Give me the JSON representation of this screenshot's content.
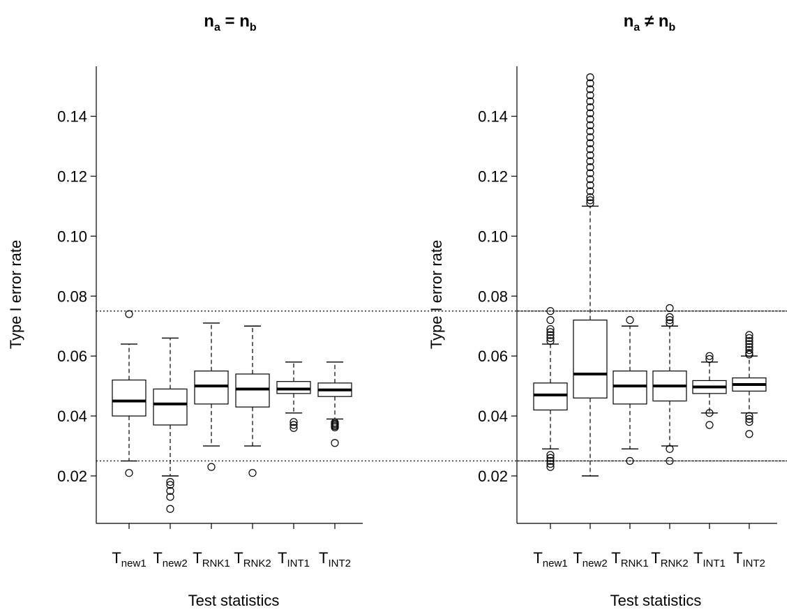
{
  "chart_data": [
    {
      "type": "box",
      "title": {
        "base": "n",
        "sub1": "a",
        "op": "=",
        "sub2": "b"
      },
      "xlabel": "Test statistics",
      "ylabel": "Type I error rate",
      "ylim": [
        0.005,
        0.158
      ],
      "yticks": [
        "0.02",
        "0.04",
        "0.06",
        "0.08",
        "0.10",
        "0.12",
        "0.14"
      ],
      "reference_lines": [
        0.025,
        0.075
      ],
      "categories": [
        {
          "base": "T",
          "sub": "new1"
        },
        {
          "base": "T",
          "sub": "new2"
        },
        {
          "base": "T",
          "sub": "RNK1"
        },
        {
          "base": "T",
          "sub": "RNK2"
        },
        {
          "base": "T",
          "sub": "INT1"
        },
        {
          "base": "T",
          "sub": "INT2"
        }
      ],
      "boxes": [
        {
          "whisker_low": 0.025,
          "q1": 0.04,
          "median": 0.045,
          "q3": 0.052,
          "whisker_high": 0.064,
          "outliers": [
            0.021,
            0.074
          ]
        },
        {
          "whisker_low": 0.02,
          "q1": 0.037,
          "median": 0.044,
          "q3": 0.049,
          "whisker_high": 0.066,
          "outliers": [
            0.009,
            0.013,
            0.015,
            0.017,
            0.018
          ]
        },
        {
          "whisker_low": 0.03,
          "q1": 0.044,
          "median": 0.05,
          "q3": 0.055,
          "whisker_high": 0.071,
          "outliers": [
            0.023
          ]
        },
        {
          "whisker_low": 0.03,
          "q1": 0.043,
          "median": 0.049,
          "q3": 0.054,
          "whisker_high": 0.07,
          "outliers": [
            0.021
          ]
        },
        {
          "whisker_low": 0.041,
          "q1": 0.0475,
          "median": 0.049,
          "q3": 0.0515,
          "whisker_high": 0.058,
          "outliers": [
            0.036,
            0.037,
            0.038
          ]
        },
        {
          "whisker_low": 0.039,
          "q1": 0.0465,
          "median": 0.0487,
          "q3": 0.051,
          "whisker_high": 0.058,
          "outliers": [
            0.031,
            0.0362,
            0.0366,
            0.037,
            0.0374,
            0.0378
          ]
        }
      ]
    },
    {
      "type": "box",
      "title": {
        "base": "n",
        "sub1": "a",
        "op": "≠",
        "sub2": "b"
      },
      "xlabel": "Test statistics",
      "ylabel": "Type I error rate",
      "ylim": [
        0.005,
        0.158
      ],
      "yticks": [
        "0.02",
        "0.04",
        "0.06",
        "0.08",
        "0.10",
        "0.12",
        "0.14"
      ],
      "reference_lines": [
        0.025,
        0.075
      ],
      "categories": [
        {
          "base": "T",
          "sub": "new1"
        },
        {
          "base": "T",
          "sub": "new2"
        },
        {
          "base": "T",
          "sub": "RNK1"
        },
        {
          "base": "T",
          "sub": "RNK2"
        },
        {
          "base": "T",
          "sub": "INT1"
        },
        {
          "base": "T",
          "sub": "INT2"
        }
      ],
      "boxes": [
        {
          "whisker_low": 0.029,
          "q1": 0.042,
          "median": 0.047,
          "q3": 0.051,
          "whisker_high": 0.064,
          "outliers": [
            0.023,
            0.024,
            0.025,
            0.026,
            0.027,
            0.065,
            0.066,
            0.067,
            0.068,
            0.069,
            0.072,
            0.075
          ]
        },
        {
          "whisker_low": 0.02,
          "q1": 0.046,
          "median": 0.054,
          "q3": 0.072,
          "whisker_high": 0.11,
          "outliers": [
            0.111,
            0.112,
            0.113,
            0.115,
            0.117,
            0.119,
            0.121,
            0.123,
            0.125,
            0.127,
            0.129,
            0.131,
            0.133,
            0.135,
            0.137,
            0.139,
            0.141,
            0.143,
            0.145,
            0.147,
            0.149,
            0.151,
            0.153
          ]
        },
        {
          "whisker_low": 0.029,
          "q1": 0.044,
          "median": 0.05,
          "q3": 0.055,
          "whisker_high": 0.07,
          "outliers": [
            0.025,
            0.072
          ]
        },
        {
          "whisker_low": 0.03,
          "q1": 0.045,
          "median": 0.05,
          "q3": 0.055,
          "whisker_high": 0.07,
          "outliers": [
            0.025,
            0.029,
            0.071,
            0.072,
            0.073,
            0.076
          ]
        },
        {
          "whisker_low": 0.041,
          "q1": 0.0475,
          "median": 0.0497,
          "q3": 0.0518,
          "whisker_high": 0.058,
          "outliers": [
            0.037,
            0.041,
            0.059,
            0.06
          ]
        },
        {
          "whisker_low": 0.041,
          "q1": 0.0483,
          "median": 0.0505,
          "q3": 0.0527,
          "whisker_high": 0.06,
          "outliers": [
            0.034,
            0.038,
            0.039,
            0.04,
            0.0605,
            0.061,
            0.062,
            0.063,
            0.064,
            0.065,
            0.066,
            0.067
          ]
        }
      ]
    }
  ]
}
